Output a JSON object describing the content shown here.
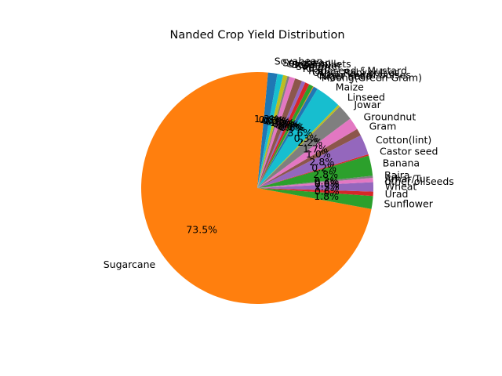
{
  "chart_data": {
    "type": "pie",
    "title": "Nanded Crop Yield Distribution",
    "start_angle_deg": 80,
    "direction": "counterclockwise",
    "slices": [
      {
        "label": "Soyabean",
        "value": 1.3,
        "pct": "1.3%",
        "color": "#1f77b4"
      },
      {
        "label": "Sugarcane",
        "value": 73.5,
        "pct": "73.5%",
        "color": "#ff7f0e"
      },
      {
        "label": "Sunflower",
        "value": 1.8,
        "pct": "1.8%",
        "color": "#2ca02c"
      },
      {
        "label": "Urad",
        "value": 0.6,
        "pct": "0.6%",
        "color": "#d62728"
      },
      {
        "label": "Wheat",
        "value": 1.3,
        "pct": "1.3%",
        "color": "#9467bd"
      },
      {
        "label": "other oilseeds",
        "value": 0.0,
        "pct": "0.0%",
        "color": "#8c564b"
      },
      {
        "label": "Arhar/Tur",
        "value": 0.6,
        "pct": "0.6%",
        "color": "#e377c2"
      },
      {
        "label": "Bajra",
        "value": 0.3,
        "pct": "0.3%",
        "color": "#7f7f7f"
      },
      {
        "label": "Banana",
        "value": 2.8,
        "pct": "2.8%",
        "color": "#2ca02c"
      },
      {
        "label": "Castor seed",
        "value": 0.2,
        "pct": "0.2%",
        "color": "#d62728"
      },
      {
        "label": "Cotton(lint)",
        "value": 2.8,
        "pct": "2.8%",
        "color": "#9467bd"
      },
      {
        "label": "Gram",
        "value": 1.0,
        "pct": "1.0%",
        "color": "#8c564b"
      },
      {
        "label": "Groundnut",
        "value": 1.7,
        "pct": "1.7%",
        "color": "#e377c2"
      },
      {
        "label": "Jowar",
        "value": 2.2,
        "pct": "2.2%",
        "color": "#7f7f7f"
      },
      {
        "label": "Linseed",
        "value": 0.3,
        "pct": "0.3%",
        "color": "#bcbd22"
      },
      {
        "label": "Maize",
        "value": 3.6,
        "pct": "3.6%",
        "color": "#17becf"
      },
      {
        "label": "Moong(Green Gram)",
        "value": 0.6,
        "pct": "0.6%",
        "color": "#1f77b4"
      },
      {
        "label": "Niger seed",
        "value": 0.1,
        "pct": "0.1%",
        "color": "#ff7f0e"
      },
      {
        "label": "Other Kharif pulses",
        "value": 0.6,
        "pct": "0.6%",
        "color": "#2ca02c"
      },
      {
        "label": "Other Rabi pulses",
        "value": 0.6,
        "pct": "0.6%",
        "color": "#d62728"
      },
      {
        "label": "Rapeseed &Mustard",
        "value": 0.5,
        "pct": "0.5%",
        "color": "#9467bd"
      },
      {
        "label": "Rice",
        "value": 1.0,
        "pct": "1.0%",
        "color": "#8c564b"
      },
      {
        "label": "Safflower",
        "value": 0.8,
        "pct": "0.8%",
        "color": "#e377c2"
      },
      {
        "label": "Sesamum",
        "value": 0.3,
        "pct": "0.3%",
        "color": "#7f7f7f"
      },
      {
        "label": "Small millets",
        "value": 0.6,
        "pct": "0.6%",
        "color": "#bcbd22"
      },
      {
        "label": "Soyabean",
        "value": 0.8,
        "pct": "0.8%",
        "color": "#17becf"
      }
    ]
  }
}
